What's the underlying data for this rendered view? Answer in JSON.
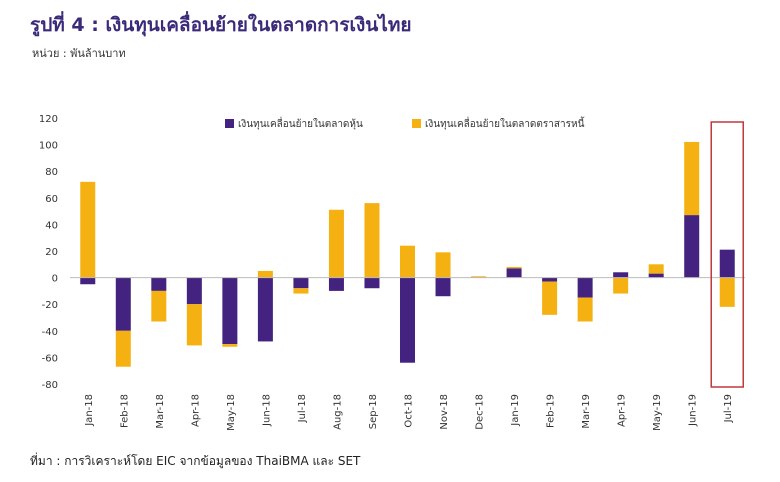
{
  "header": {
    "title": "รูปที่ 4 : เงินทุนเคลื่อนย้ายในตลาดการเงินไทย",
    "unit": "หน่วย : พันล้านบาท"
  },
  "footer": {
    "source": "ที่มา : การวิเคราะห์โดย EIC จากข้อมูลของ ThaiBMA และ SET"
  },
  "colors": {
    "equity": "#43237f",
    "bond": "#f5b112",
    "highlight": "#c0393b"
  },
  "chart_data": {
    "type": "bar",
    "stacked": true,
    "categories": [
      "Jan-18",
      "Feb-18",
      "Mar-18",
      "Apr-18",
      "May-18",
      "Jun-18",
      "Jul-18",
      "Aug-18",
      "Sep-18",
      "Oct-18",
      "Nov-18",
      "Dec-18",
      "Jan-19",
      "Feb-19",
      "Mar-19",
      "Apr-19",
      "May-19",
      "Jun-19",
      "Jul-19"
    ],
    "series": [
      {
        "name": "เงินทุนเคลื่อนย้ายในตลาดหุ้น",
        "values": [
          -5,
          -40,
          -10,
          -20,
          -50,
          -48,
          -8,
          -10,
          -8,
          -64,
          -14,
          0,
          7,
          -3,
          -15,
          4,
          3,
          47,
          21
        ]
      },
      {
        "name": "เงินทุนเคลื่อนย้ายในตลาดตราสารหนี้",
        "values": [
          72,
          -27,
          -23,
          -31,
          -2,
          5,
          -4,
          51,
          56,
          24,
          19,
          1,
          1,
          -25,
          -18,
          -12,
          7,
          55,
          -22
        ]
      }
    ],
    "yticks": [
      120,
      100,
      80,
      60,
      40,
      20,
      0,
      -20,
      -40,
      -60,
      -80
    ],
    "ylim": [
      -80,
      120
    ],
    "highlight_category": "Jul-19",
    "legend_position": "top"
  }
}
